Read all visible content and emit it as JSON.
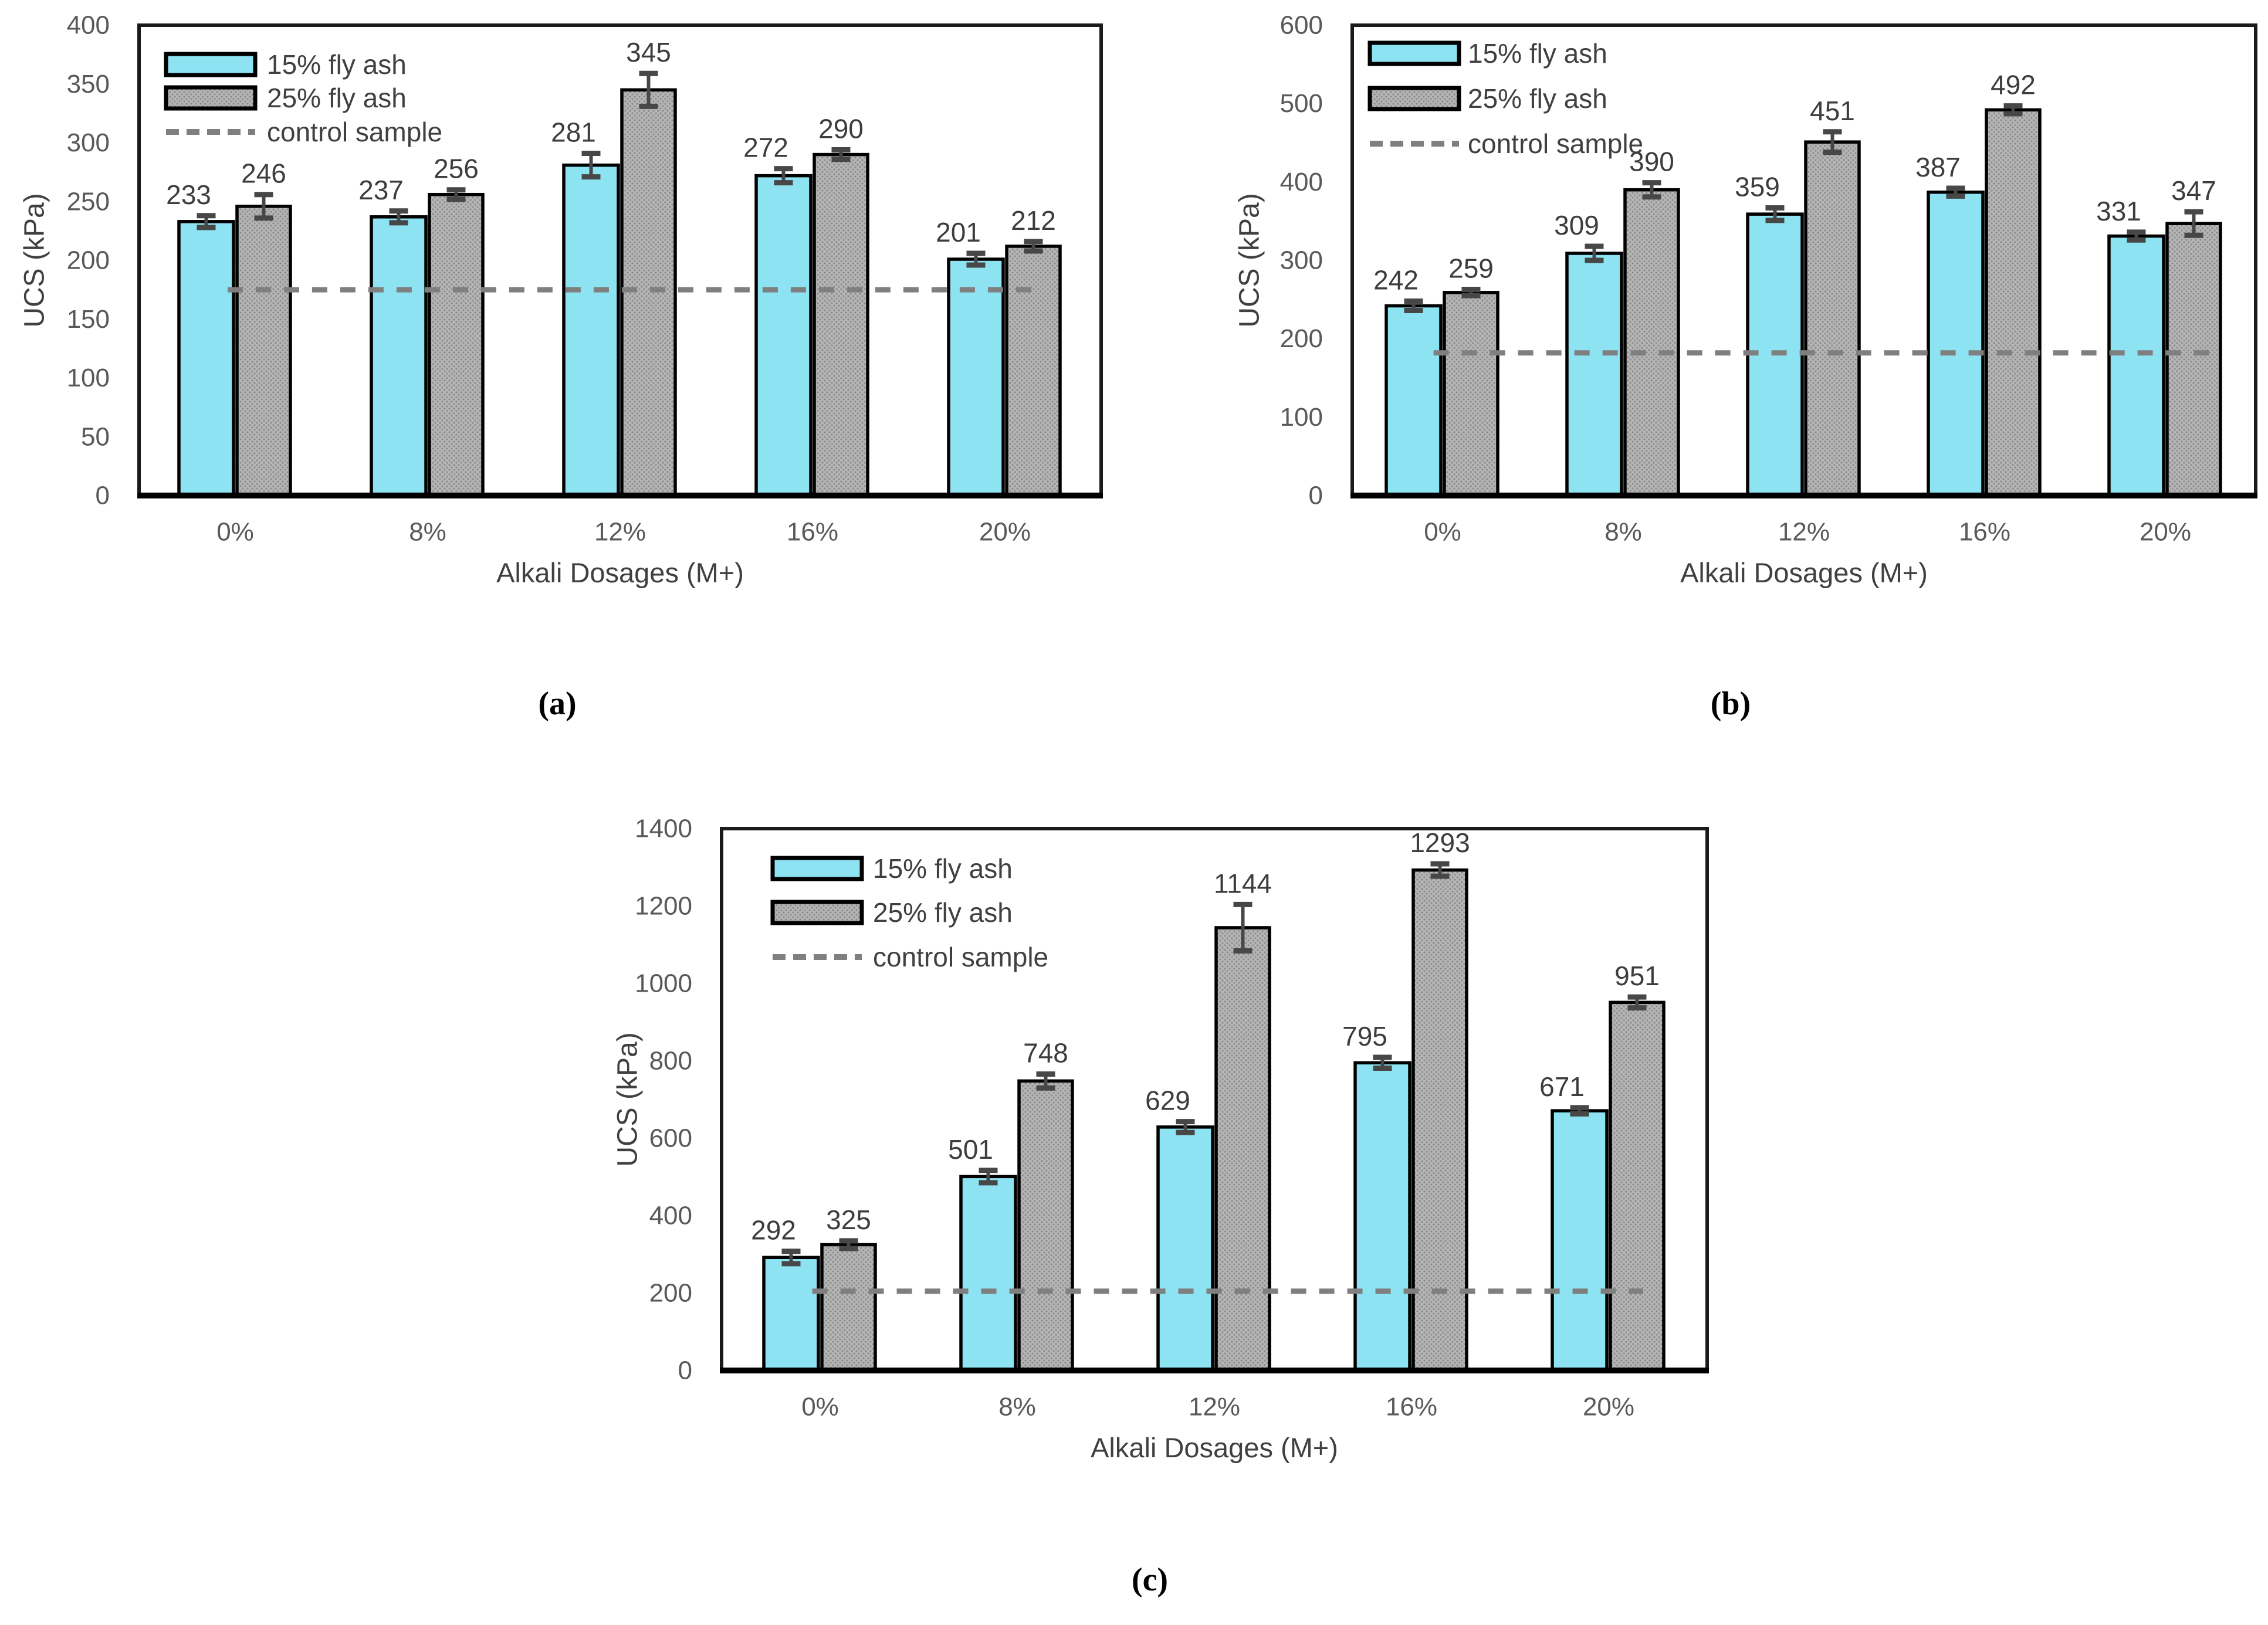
{
  "figure": {
    "background": "#ffffff",
    "caption_a": "(a)",
    "caption_b": "(b)",
    "caption_c": "(c)"
  },
  "colors": {
    "series_15_fill": "#8EE3F2",
    "series_25_fill": "#B5B5B5",
    "series_25_dot": "#8C8C8C",
    "bar_stroke": "#000000",
    "frame_stroke": "#1A1A1A",
    "axis_stroke": "#000000",
    "error_bar": "#474747",
    "control_line": "#7F7F7F",
    "tick_text": "#595959",
    "value_text": "#3D3D3D",
    "legend_text": "#404040",
    "axis_title_text": "#404040"
  },
  "chart_data": [
    {
      "id": "a",
      "type": "bar",
      "sublabel": "(a)",
      "xlabel": "Alkali Dosages (M+)",
      "ylabel": "UCS (kPa)",
      "categories": [
        "0%",
        "8%",
        "12%",
        "16%",
        "20%"
      ],
      "series": [
        {
          "name": "15% fly ash",
          "values": [
            233,
            237,
            281,
            272,
            201
          ],
          "errors": [
            5,
            5,
            10,
            6,
            5
          ]
        },
        {
          "name": "25% fly ash",
          "values": [
            246,
            256,
            345,
            290,
            212
          ],
          "errors": [
            10,
            4,
            14,
            4,
            4
          ]
        }
      ],
      "control_line": {
        "label": "control sample",
        "value": 175
      },
      "ylim": [
        0,
        400
      ],
      "ystep": 50,
      "grid": false,
      "legend_position": "top-left"
    },
    {
      "id": "b",
      "type": "bar",
      "sublabel": "(b)",
      "xlabel": "Alkali Dosages (M+)",
      "ylabel": "UCS (kPa)",
      "categories": [
        "0%",
        "8%",
        "12%",
        "16%",
        "20%"
      ],
      "series": [
        {
          "name": "15% fly ash",
          "values": [
            242,
            309,
            359,
            387,
            331
          ],
          "errors": [
            6,
            9,
            8,
            5,
            5
          ]
        },
        {
          "name": "25% fly ash",
          "values": [
            259,
            390,
            451,
            492,
            347
          ],
          "errors": [
            4,
            9,
            13,
            5,
            15
          ]
        }
      ],
      "control_line": {
        "label": "control sample",
        "value": 182
      },
      "ylim": [
        0,
        600
      ],
      "ystep": 100,
      "grid": false,
      "legend_position": "top-left"
    },
    {
      "id": "c",
      "type": "bar",
      "sublabel": "(c)",
      "xlabel": "Alkali Dosages (M+)",
      "ylabel": "UCS (kPa)",
      "categories": [
        "0%",
        "8%",
        "12%",
        "16%",
        "20%"
      ],
      "series": [
        {
          "name": "15% fly ash",
          "values": [
            292,
            501,
            629,
            795,
            671
          ],
          "errors": [
            16,
            16,
            14,
            14,
            8
          ]
        },
        {
          "name": "25% fly ash",
          "values": [
            325,
            748,
            1144,
            1293,
            951
          ],
          "errors": [
            10,
            18,
            60,
            16,
            14
          ]
        }
      ],
      "control_line": {
        "label": "control sample",
        "value": 205
      },
      "ylim": [
        0,
        1400
      ],
      "ystep": 200,
      "grid": false,
      "legend_position": "top-left"
    }
  ]
}
